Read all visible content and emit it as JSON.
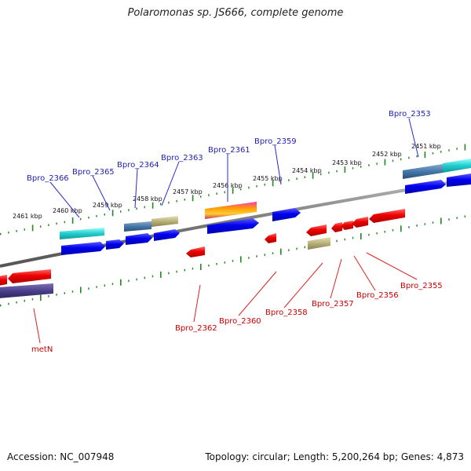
{
  "title": "Polaromonas sp. JS666, complete genome",
  "footer": {
    "accession": "Accession: NC_007948",
    "topology": "Topology: circular; Length: 5,200,264 bp; Genes: 4,873"
  },
  "scale_labels": [
    "2461 kbp",
    "2460 kbp",
    "2459 kbp",
    "2458 kbp",
    "2457 kbp",
    "2456 kbp",
    "2455 kbp",
    "2454 kbp",
    "2453 kbp",
    "2452 kbp",
    "2451 kbp"
  ],
  "gene_labels_top": [
    "Bpro_2366",
    "Bpro_2365",
    "Bpro_2364",
    "Bpro_2363",
    "Bpro_2361",
    "Bpro_2359",
    "Bpro_2353"
  ],
  "gene_labels_bottom": [
    "metN",
    "Bpro_2362",
    "Bpro_2360",
    "Bpro_2358",
    "Bpro_2357",
    "Bpro_2356",
    "Bpro_2355"
  ],
  "colors": {
    "forward_cds": "#0000ee",
    "reverse_cds": "#ee0000",
    "rna_cyan": "#22cccc",
    "steelblue": "#4477aa",
    "khaki": "#b8b07a",
    "navy": "#4a3f8a",
    "label_blue": "#1f1fb0",
    "label_red": "#cc0000",
    "tick_green": "#228822",
    "backbone": "#888888"
  }
}
